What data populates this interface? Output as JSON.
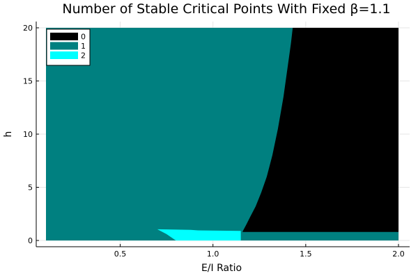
{
  "chart_data": {
    "type": "heatmap",
    "title": "Number of Stable Critical Points With Fixed β=1.1",
    "xlabel": "E/I Ratio",
    "ylabel": "h",
    "xlim": [
      0.1,
      2.0
    ],
    "ylim": [
      0,
      20
    ],
    "xticks": [
      0.5,
      1.0,
      1.5,
      2.0
    ],
    "xtick_labels": [
      "0.5",
      "1.0",
      "1.5",
      "2.0"
    ],
    "yticks": [
      0,
      5,
      10,
      15,
      20
    ],
    "ytick_labels": [
      "0",
      "5",
      "10",
      "15",
      "20"
    ],
    "legend_position": "top-left",
    "grid": true,
    "categories": [
      {
        "label": "0",
        "color": "#000000"
      },
      {
        "label": "1",
        "color": "#008080"
      },
      {
        "label": "2",
        "color": "#00ffff"
      }
    ],
    "regions": {
      "zero_boundary": {
        "description_h_vs_ratio": [
          [
            1.16,
            0.85
          ],
          [
            1.18,
            1.5
          ],
          [
            1.2,
            2.2
          ],
          [
            1.23,
            3.2
          ],
          [
            1.26,
            4.5
          ],
          [
            1.29,
            6.0
          ],
          [
            1.32,
            8.0
          ],
          [
            1.35,
            10.5
          ],
          [
            1.38,
            13.5
          ],
          [
            1.4,
            16.0
          ],
          [
            1.42,
            18.5
          ],
          [
            1.43,
            20.0
          ]
        ],
        "bottom_band_h": 0.8
      },
      "two_region": [
        [
          0.7,
          1.05
        ],
        [
          0.88,
          1.0
        ],
        [
          0.92,
          0.95
        ],
        [
          1.15,
          0.9
        ],
        [
          1.15,
          0.0
        ],
        [
          0.8,
          0.0
        ],
        [
          0.75,
          0.6
        ]
      ]
    }
  }
}
